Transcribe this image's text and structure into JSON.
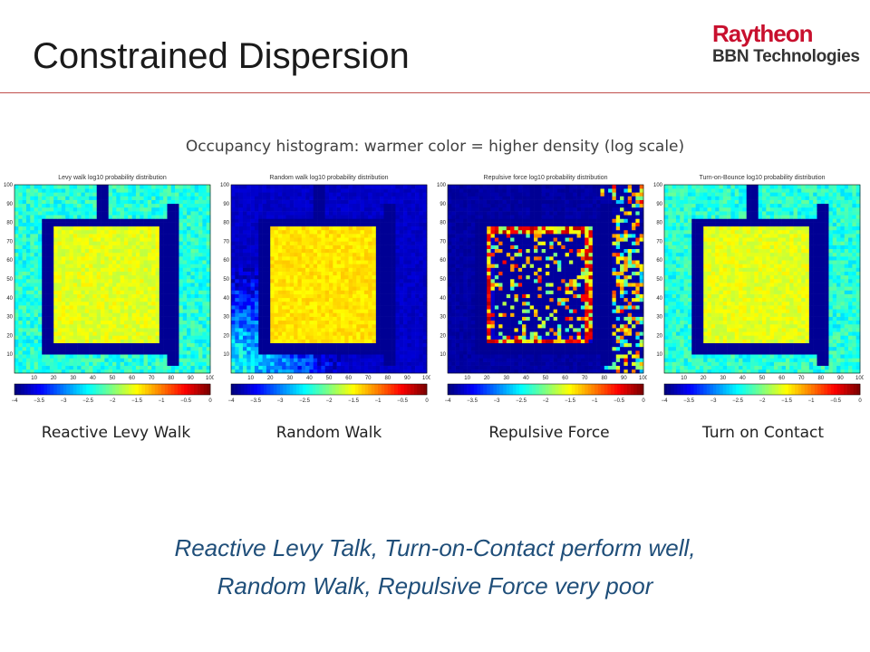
{
  "slide": {
    "title": "Constrained Dispersion",
    "logo_line1": "Raytheon",
    "logo_line2": "BBN Technologies",
    "subtitle": "Occupancy histogram: warmer color = higher density (log scale)",
    "conclusion_line1": "Reactive Levy Talk, Turn-on-Contact perform well,",
    "conclusion_line2": "Random Walk, Repulsive Force very poor"
  },
  "chart_data": [
    {
      "type": "heatmap",
      "label": "Reactive Levy Walk",
      "title": "Levy walk log10 probability distribution",
      "xlim": [
        0,
        100
      ],
      "ylim": [
        0,
        100
      ],
      "x_ticks": [
        10,
        20,
        30,
        40,
        50,
        60,
        70,
        80,
        90,
        100
      ],
      "y_ticks": [
        10,
        20,
        30,
        40,
        50,
        60,
        70,
        80,
        90,
        100
      ],
      "colorbar_ticks": [
        "-4",
        "-3.5",
        "-3",
        "-2.5",
        "-2",
        "-1.5",
        "-1",
        "-0.5",
        "0"
      ],
      "colorbar_range": [
        -4,
        0
      ],
      "pattern": "levy"
    },
    {
      "type": "heatmap",
      "label": "Random Walk",
      "title": "Random walk log10 probability distribution",
      "xlim": [
        0,
        100
      ],
      "ylim": [
        0,
        100
      ],
      "x_ticks": [
        10,
        20,
        30,
        40,
        50,
        60,
        70,
        80,
        90,
        100
      ],
      "y_ticks": [
        10,
        20,
        30,
        40,
        50,
        60,
        70,
        80,
        90,
        100
      ],
      "colorbar_ticks": [
        "-4",
        "-3.5",
        "-3",
        "-2.5",
        "-2",
        "-1.5",
        "-1",
        "-0.5",
        "0"
      ],
      "colorbar_range": [
        -4,
        0
      ],
      "pattern": "random"
    },
    {
      "type": "heatmap",
      "label": "Repulsive Force",
      "title": "Repulsive force log10 probability distribution",
      "xlim": [
        0,
        100
      ],
      "ylim": [
        0,
        100
      ],
      "x_ticks": [
        10,
        20,
        30,
        40,
        50,
        60,
        70,
        80,
        90,
        100
      ],
      "y_ticks": [
        10,
        20,
        30,
        40,
        50,
        60,
        70,
        80,
        90,
        100
      ],
      "colorbar_ticks": [
        "-4",
        "-3.5",
        "-3",
        "-2.5",
        "-2",
        "-1.5",
        "-1",
        "-0.5",
        "0"
      ],
      "colorbar_range": [
        -4,
        0
      ],
      "pattern": "repulsive"
    },
    {
      "type": "heatmap",
      "label": "Turn on Contact",
      "title": "Turn-on-Bounce log10 probability distribution",
      "xlim": [
        0,
        100
      ],
      "ylim": [
        0,
        100
      ],
      "x_ticks": [
        10,
        20,
        30,
        40,
        50,
        60,
        70,
        80,
        90,
        100
      ],
      "y_ticks": [
        10,
        20,
        30,
        40,
        50,
        60,
        70,
        80,
        90,
        100
      ],
      "colorbar_ticks": [
        "-4",
        "-3.5",
        "-3",
        "-2.5",
        "-2",
        "-1.5",
        "-1",
        "-0.5",
        "0"
      ],
      "colorbar_range": [
        -4,
        0
      ],
      "pattern": "turn"
    }
  ]
}
